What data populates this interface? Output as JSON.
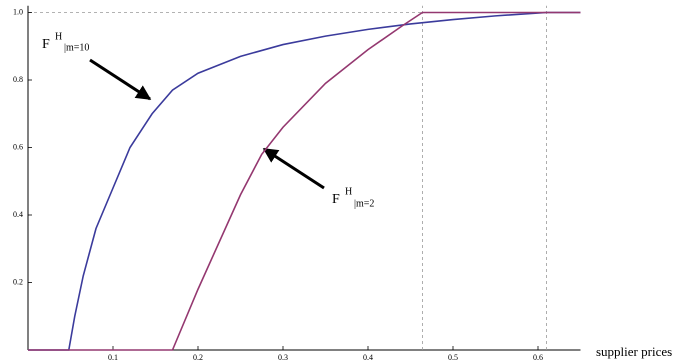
{
  "chart_data": {
    "type": "line",
    "x_label": "supplier prices",
    "xlim": [
      0,
      0.65
    ],
    "ylim": [
      0,
      1.02
    ],
    "xticks": [
      0.1,
      0.2,
      0.3,
      0.4,
      0.5,
      0.6
    ],
    "yticks": [
      0.2,
      0.4,
      0.6,
      0.8,
      {
        "value": 1,
        "label": "1.0"
      }
    ],
    "reference_x": [
      0.464,
      0.61
    ],
    "reference_y": [
      1
    ],
    "series": [
      {
        "name": "m=10",
        "color": "#3b3b9c",
        "x": [
          0,
          0.048,
          0.055,
          0.065,
          0.08,
          0.1,
          0.12,
          0.146,
          0.17,
          0.2,
          0.25,
          0.3,
          0.35,
          0.4,
          0.45,
          0.5,
          0.55,
          0.61,
          0.65
        ],
        "values": [
          0,
          0,
          0.1,
          0.22,
          0.36,
          0.48,
          0.6,
          0.7,
          0.77,
          0.82,
          0.87,
          0.905,
          0.93,
          0.95,
          0.966,
          0.979,
          0.99,
          1,
          1
        ]
      },
      {
        "name": "m=2",
        "color": "#943870",
        "x": [
          0,
          0.17,
          0.2,
          0.25,
          0.275,
          0.3,
          0.35,
          0.4,
          0.44,
          0.464,
          0.65
        ],
        "values": [
          0,
          0,
          0.18,
          0.46,
          0.58,
          0.66,
          0.79,
          0.89,
          0.96,
          1,
          1
        ]
      }
    ],
    "annotations": [
      {
        "text": "F",
        "sup": "H",
        "sub": "|m=10"
      },
      {
        "text": "F",
        "sup": "H",
        "sub": "|m=2"
      }
    ]
  }
}
